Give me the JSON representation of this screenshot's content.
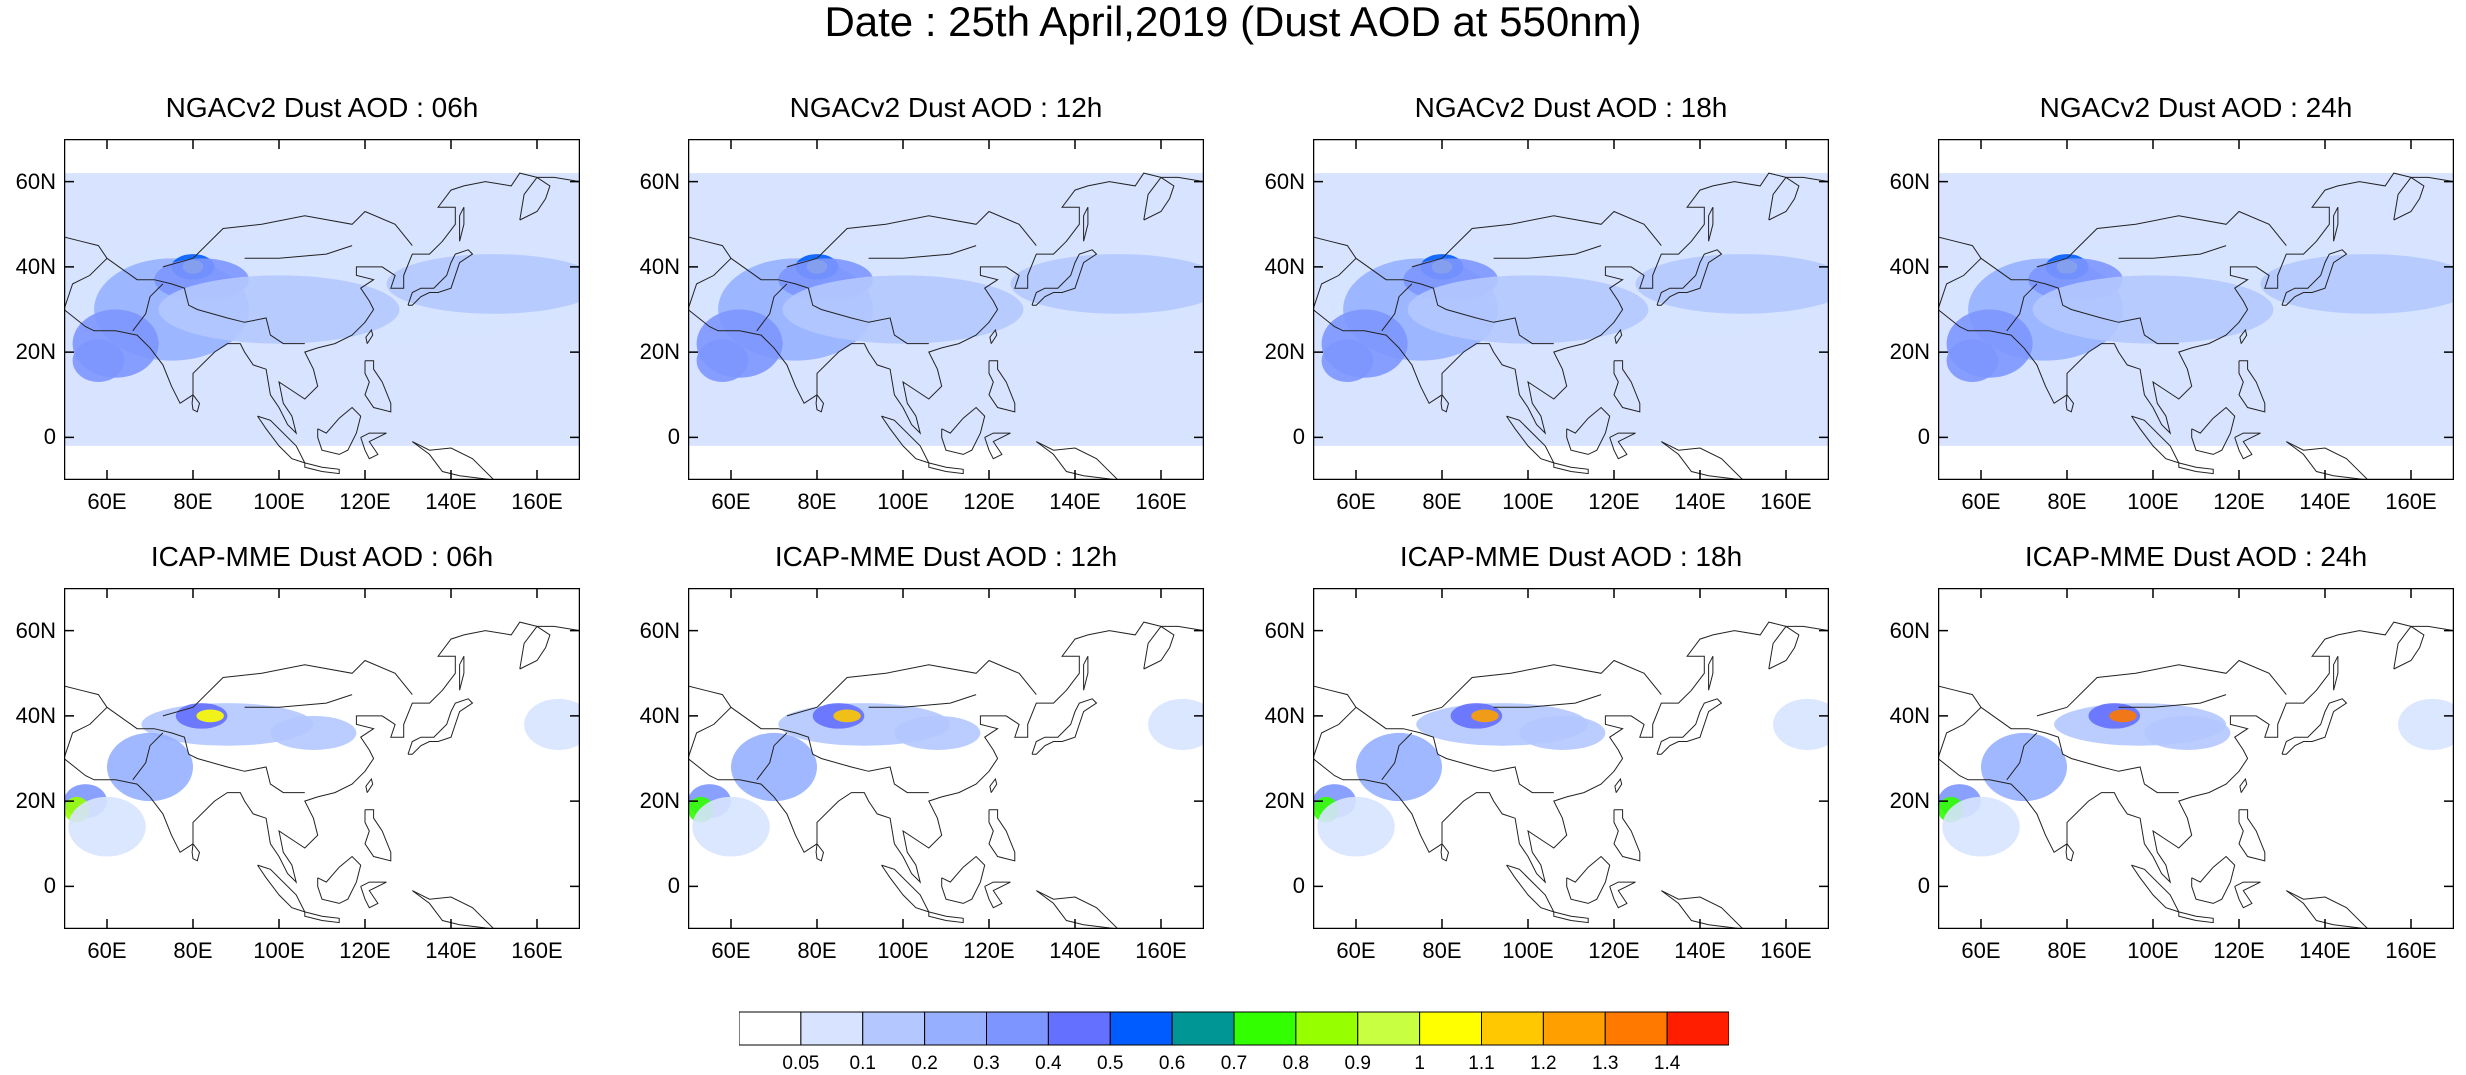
{
  "title": "Date : 25th April,2019 (Dust AOD at 550nm)",
  "panels": [
    {
      "title": "NGACv2 Dust AOD : 06h"
    },
    {
      "title": "NGACv2 Dust AOD : 12h"
    },
    {
      "title": "NGACv2 Dust AOD : 18h"
    },
    {
      "title": "NGACv2 Dust AOD : 24h"
    },
    {
      "title": "ICAP-MME Dust AOD : 06h"
    },
    {
      "title": "ICAP-MME Dust AOD : 12h"
    },
    {
      "title": "ICAP-MME Dust AOD : 18h"
    },
    {
      "title": "ICAP-MME Dust AOD : 24h"
    }
  ],
  "map_extent": {
    "lon": [
      50,
      170
    ],
    "lat": [
      -10,
      70
    ]
  },
  "lat_ticks": [
    {
      "value": 60,
      "label": "60N"
    },
    {
      "value": 40,
      "label": "40N"
    },
    {
      "value": 20,
      "label": "20N"
    },
    {
      "value": 0,
      "label": "0"
    }
  ],
  "lon_ticks": [
    {
      "value": 60,
      "label": "60E"
    },
    {
      "value": 80,
      "label": "80E"
    },
    {
      "value": 100,
      "label": "100E"
    },
    {
      "value": 120,
      "label": "120E"
    },
    {
      "value": 140,
      "label": "140E"
    },
    {
      "value": 160,
      "label": "160E"
    }
  ],
  "colorbar": {
    "labels": [
      "0.05",
      "0.1",
      "0.2",
      "0.3",
      "0.4",
      "0.5",
      "0.6",
      "0.7",
      "0.8",
      "0.9",
      "1",
      "1.1",
      "1.2",
      "1.3",
      "1.4"
    ],
    "colors": [
      "#ffffff",
      "#d7e3ff",
      "#b4c8ff",
      "#96b0ff",
      "#7d96ff",
      "#6470ff",
      "#005cff",
      "#009696",
      "#32ff00",
      "#96ff00",
      "#c8ff40",
      "#ffff00",
      "#ffc800",
      "#ffa000",
      "#ff7800",
      "#ff1e00"
    ]
  }
}
